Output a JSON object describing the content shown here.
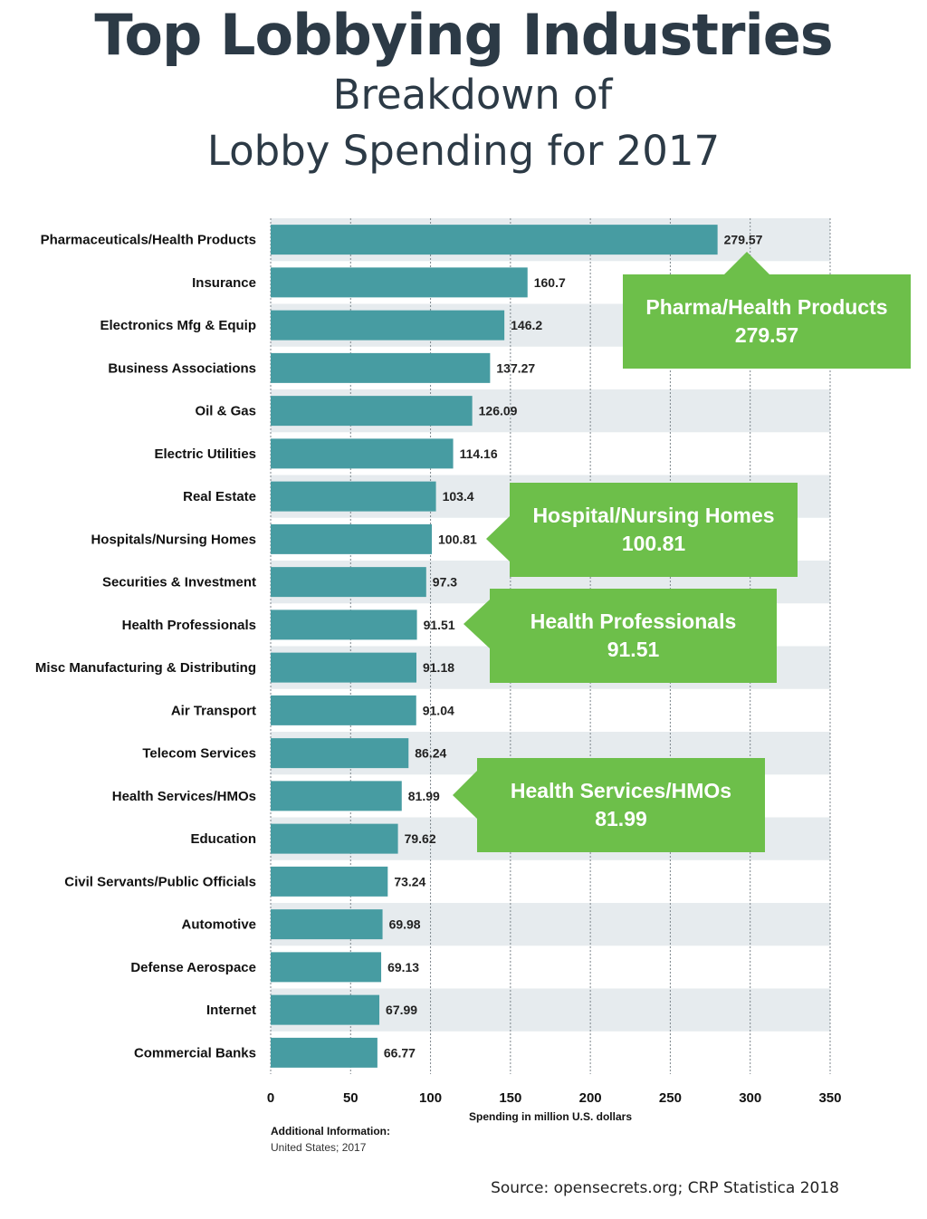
{
  "title": "Top Lobbying Industries",
  "subtitle_line1": "Breakdown of",
  "subtitle_line2": "Lobby Spending for 2017",
  "chart_data": {
    "type": "bar",
    "orientation": "horizontal",
    "categories": [
      "Pharmaceuticals/Health Products",
      "Insurance",
      "Electronics Mfg & Equip",
      "Business Associations",
      "Oil & Gas",
      "Electric Utilities",
      "Real Estate",
      "Hospitals/Nursing Homes",
      "Securities & Investment",
      "Health Professionals",
      "Misc Manufacturing & Distributing",
      "Air Transport",
      "Telecom Services",
      "Health Services/HMOs",
      "Education",
      "Civil Servants/Public Officials",
      "Automotive",
      "Defense Aerospace",
      "Internet",
      "Commercial Banks"
    ],
    "values": [
      279.57,
      160.7,
      146.2,
      137.27,
      126.09,
      114.16,
      103.4,
      100.81,
      97.3,
      91.51,
      91.18,
      91.04,
      86.24,
      81.99,
      79.62,
      73.24,
      69.98,
      69.13,
      67.99,
      66.77
    ],
    "value_labels": [
      "279.57",
      "160.7",
      "146.2",
      "137.27",
      "126.09",
      "114.16",
      "103.4",
      "100.81",
      "97.3",
      "91.51",
      "91.18",
      "91.04",
      "86.24",
      "81.99",
      "79.62",
      "73.24",
      "69.98",
      "69.13",
      "67.99",
      "66.77"
    ],
    "xlabel": "Spending in million U.S. dollars",
    "xlim": [
      0,
      350
    ],
    "xticks": [
      0,
      50,
      100,
      150,
      200,
      250,
      300,
      350
    ],
    "grid": true,
    "bar_color": "#479ca2",
    "stripe_color": "#e6ebee"
  },
  "callouts": [
    {
      "line1": "Pharma/Health Products",
      "line2": "279.57"
    },
    {
      "line1": "Hospital/Nursing Homes",
      "line2": "100.81"
    },
    {
      "line1": "Health Professionals",
      "line2": "91.51"
    },
    {
      "line1": "Health Services/HMOs",
      "line2": "81.99"
    }
  ],
  "callout_color": "#6dbf4a",
  "additional_info_heading": "Additional Information:",
  "additional_info_text": "United States; 2017",
  "source": "Source: opensecrets.org; CRP Statistica 2018"
}
